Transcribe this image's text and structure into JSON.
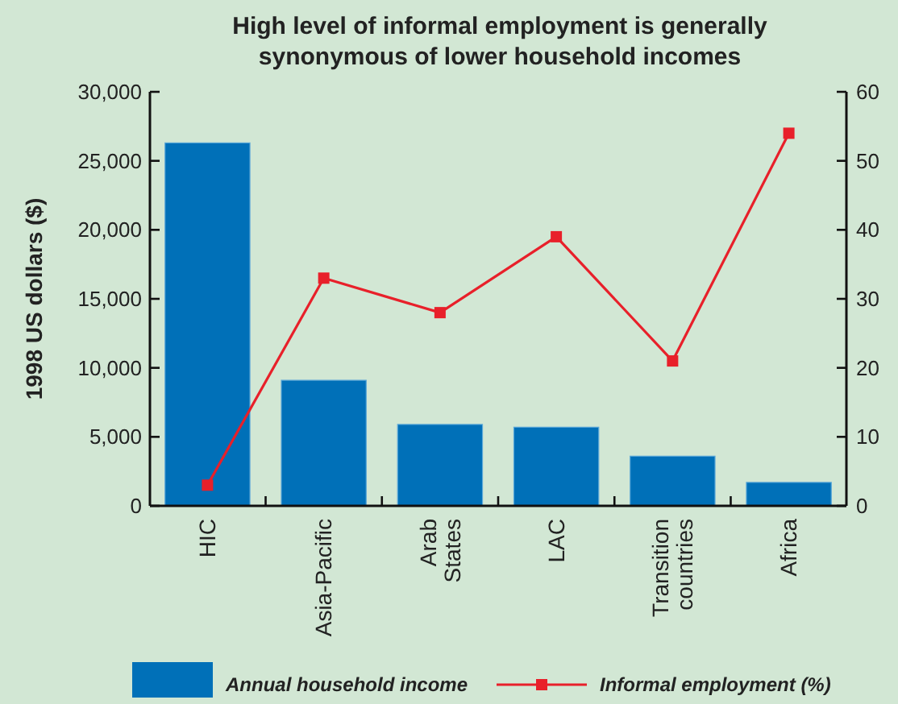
{
  "chart_data": {
    "type": "bar",
    "title": "High level of informal employment is generally synonymous of lower household incomes",
    "ylabel": "1998 US dollars ($)",
    "categories": [
      "HIC",
      "Asia-Pacific",
      "Arab States",
      "LAC",
      "Transition countries",
      "Africa"
    ],
    "series": [
      {
        "name": "Annual household income",
        "color": "#0070b8",
        "values": [
          26300,
          9100,
          5900,
          5700,
          3600,
          1700
        ]
      },
      {
        "name": "Informal employment (%)",
        "type": "line",
        "axis": "y2",
        "color": "#e8202a",
        "marker": "square",
        "values": [
          3,
          33,
          28,
          39,
          21,
          54
        ]
      }
    ],
    "ylim": [
      0,
      30000
    ],
    "yticks": [
      {
        "value": 0,
        "label": "0"
      },
      {
        "value": 5000,
        "label": "5,000"
      },
      {
        "value": 10000,
        "label": "10,000"
      },
      {
        "value": 15000,
        "label": "15,000"
      },
      {
        "value": 20000,
        "label": "20,000"
      },
      {
        "value": 25000,
        "label": "25,000"
      },
      {
        "value": 30000,
        "label": "30,000"
      }
    ],
    "y2lim": [
      0,
      60
    ],
    "y2ticks": [
      0,
      10,
      20,
      30,
      40,
      50,
      60
    ],
    "grid": false,
    "legend": "bottom"
  }
}
